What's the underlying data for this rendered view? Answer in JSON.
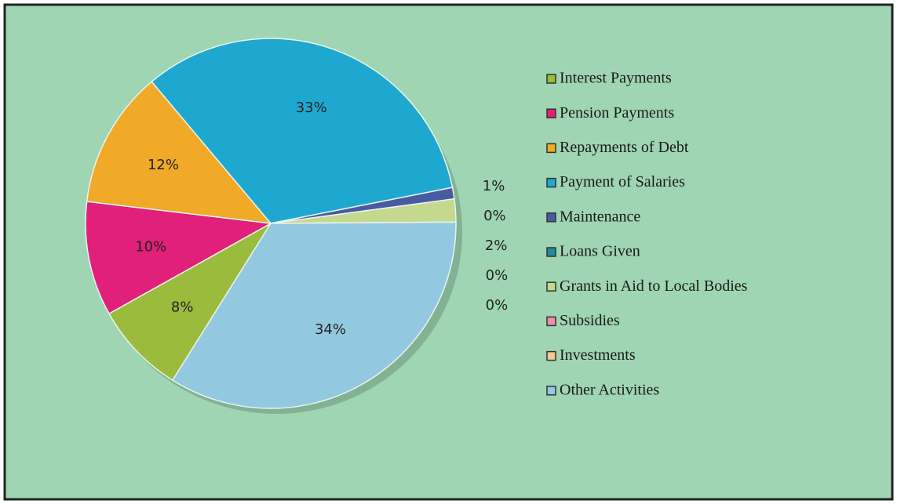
{
  "chart_data": {
    "type": "pie",
    "categories": [
      "Interest Payments",
      "Pension Payments",
      "Repayments of Debt",
      "Payment of Salaries",
      "Maintenance",
      "Loans Given",
      "Grants in Aid to Local Bodies",
      "Subsidies",
      "Investments",
      "Other Activities"
    ],
    "values": [
      8,
      10,
      12,
      33,
      1,
      0,
      2,
      0,
      0,
      34
    ],
    "value_labels": [
      "8%",
      "10%",
      "12%",
      "33%",
      "1%",
      "0%",
      "2%",
      "0%",
      "0%",
      "34%"
    ],
    "colors": [
      "#9bbb3c",
      "#e0207a",
      "#f0aa28",
      "#1ea8d0",
      "#4a5aa0",
      "#1e8e98",
      "#c4d88e",
      "#e890b0",
      "#f4c890",
      "#92c8e0"
    ],
    "legend": "right"
  }
}
